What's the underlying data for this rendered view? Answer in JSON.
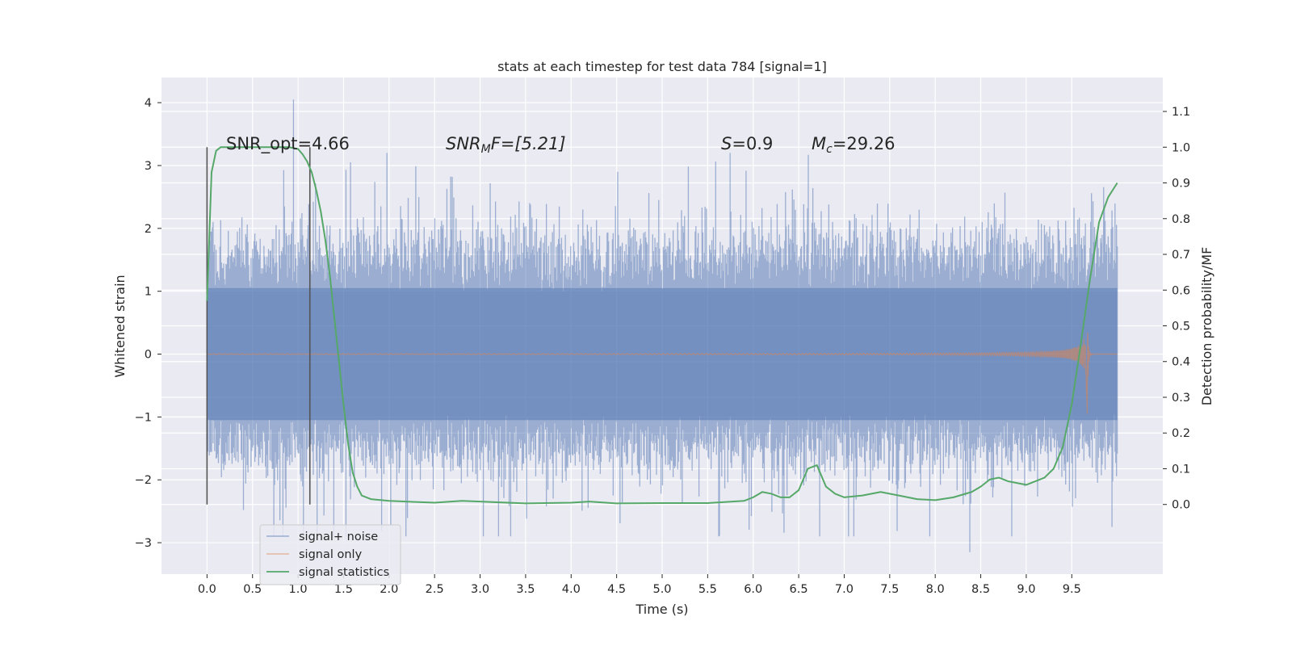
{
  "chart_data": {
    "type": "line",
    "title": "stats at each timestep for test data 784 [signal=1]",
    "xlabel": "Time (s)",
    "ylabel_left": "Whitened strain",
    "ylabel_right": "Detection probability/MF",
    "xlim": [
      -0.5,
      10.5
    ],
    "ylim_left": [
      -3.5,
      4.4
    ],
    "ylim_right": [
      -0.195,
      1.195
    ],
    "xticks": [
      "0.0",
      "0.5",
      "1.0",
      "1.5",
      "2.0",
      "2.5",
      "3.0",
      "3.5",
      "4.0",
      "4.5",
      "5.0",
      "5.5",
      "6.0",
      "6.5",
      "7.0",
      "7.5",
      "8.0",
      "8.5",
      "9.0",
      "9.5"
    ],
    "yticks_left": [
      "4",
      "3",
      "2",
      "1",
      "0",
      "−1",
      "−2",
      "−3"
    ],
    "yticks_right": [
      "1.1",
      "1.0",
      "0.9",
      "0.8",
      "0.7",
      "0.6",
      "0.5",
      "0.4",
      "0.3",
      "0.2",
      "0.1",
      "0.0"
    ],
    "grid": true,
    "legend_position": "lower-left",
    "annotations": {
      "snr_opt": "SNR_opt=4.66",
      "snr_mf_base": "SNR",
      "snr_mf_sub": "M",
      "snr_mf_tail": "F=[5.21]",
      "s": "S",
      "s_tail": "=0.9",
      "mc_base": "M",
      "mc_sub": "c",
      "mc_tail": "=29.26"
    },
    "vertical_lines": [
      0.0,
      1.13
    ],
    "series": [
      {
        "name": "signal+ noise",
        "color": "#4c72b0",
        "kind": "noise",
        "x_range": [
          0.0,
          10.0
        ],
        "typical_amplitude": [
          -1.7,
          1.8
        ],
        "extremes": [
          4.05,
          -3.15
        ]
      },
      {
        "name": "signal only",
        "color": "#dd8452",
        "kind": "chirp",
        "x_range": [
          0.0,
          10.0
        ],
        "merger_time": 9.67,
        "peak_amplitude": 0.5,
        "min_amplitude": -0.95
      },
      {
        "name": "signal statistics",
        "color": "#55a868",
        "kind": "line",
        "x": [
          0.0,
          0.05,
          0.1,
          0.15,
          0.2,
          0.3,
          0.5,
          0.7,
          0.9,
          1.0,
          1.05,
          1.1,
          1.15,
          1.2,
          1.25,
          1.3,
          1.35,
          1.4,
          1.45,
          1.5,
          1.55,
          1.6,
          1.65,
          1.7,
          1.8,
          2.0,
          2.5,
          2.8,
          3.0,
          3.5,
          4.0,
          4.2,
          4.5,
          5.0,
          5.5,
          5.9,
          6.0,
          6.1,
          6.2,
          6.3,
          6.4,
          6.5,
          6.6,
          6.7,
          6.8,
          6.9,
          7.0,
          7.2,
          7.4,
          7.6,
          7.8,
          8.0,
          8.2,
          8.4,
          8.5,
          8.6,
          8.7,
          8.8,
          9.0,
          9.2,
          9.3,
          9.4,
          9.5,
          9.6,
          9.7,
          9.8,
          9.9,
          10.0
        ],
        "y": [
          0.57,
          0.93,
          0.99,
          1.0,
          1.0,
          1.0,
          1.0,
          1.0,
          1.0,
          0.995,
          0.98,
          0.96,
          0.93,
          0.88,
          0.82,
          0.74,
          0.64,
          0.52,
          0.4,
          0.28,
          0.17,
          0.09,
          0.05,
          0.025,
          0.015,
          0.01,
          0.005,
          0.01,
          0.008,
          0.003,
          0.005,
          0.008,
          0.003,
          0.004,
          0.004,
          0.01,
          0.02,
          0.035,
          0.03,
          0.02,
          0.02,
          0.04,
          0.1,
          0.11,
          0.05,
          0.03,
          0.02,
          0.025,
          0.035,
          0.025,
          0.015,
          0.012,
          0.02,
          0.035,
          0.05,
          0.07,
          0.075,
          0.065,
          0.055,
          0.075,
          0.1,
          0.16,
          0.28,
          0.45,
          0.63,
          0.79,
          0.86,
          0.9
        ]
      }
    ]
  }
}
